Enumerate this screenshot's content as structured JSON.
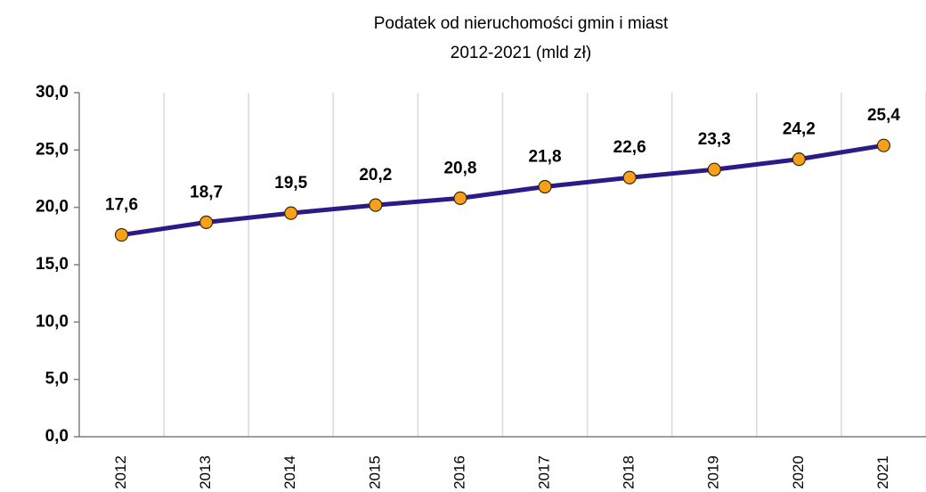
{
  "chart_data": {
    "type": "line",
    "title": "Podatek od nieruchomości gmin i miast",
    "subtitle": "2012-2021  (mld zł)",
    "categories": [
      "2012",
      "2013",
      "2014",
      "2015",
      "2016",
      "2017",
      "2018",
      "2019",
      "2020",
      "2021"
    ],
    "values": [
      17.6,
      18.7,
      19.5,
      20.2,
      20.8,
      21.8,
      22.6,
      23.3,
      24.2,
      25.4
    ],
    "value_labels": [
      "17,6",
      "18,7",
      "19,5",
      "20,2",
      "20,8",
      "21,8",
      "22,6",
      "23,3",
      "24,2",
      "25,4"
    ],
    "color": "#2e1a87",
    "marker_color": "#f7a11a",
    "ylim": [
      0,
      30
    ],
    "yticks": [
      {
        "value": 0,
        "label": "0,0"
      },
      {
        "value": 5,
        "label": "5,0"
      },
      {
        "value": 10,
        "label": "10,0"
      },
      {
        "value": 15,
        "label": "15,0"
      },
      {
        "value": 20,
        "label": "20,0"
      },
      {
        "value": 25,
        "label": "25,0"
      },
      {
        "value": 30,
        "label": "30,0"
      }
    ],
    "grid": "x"
  }
}
